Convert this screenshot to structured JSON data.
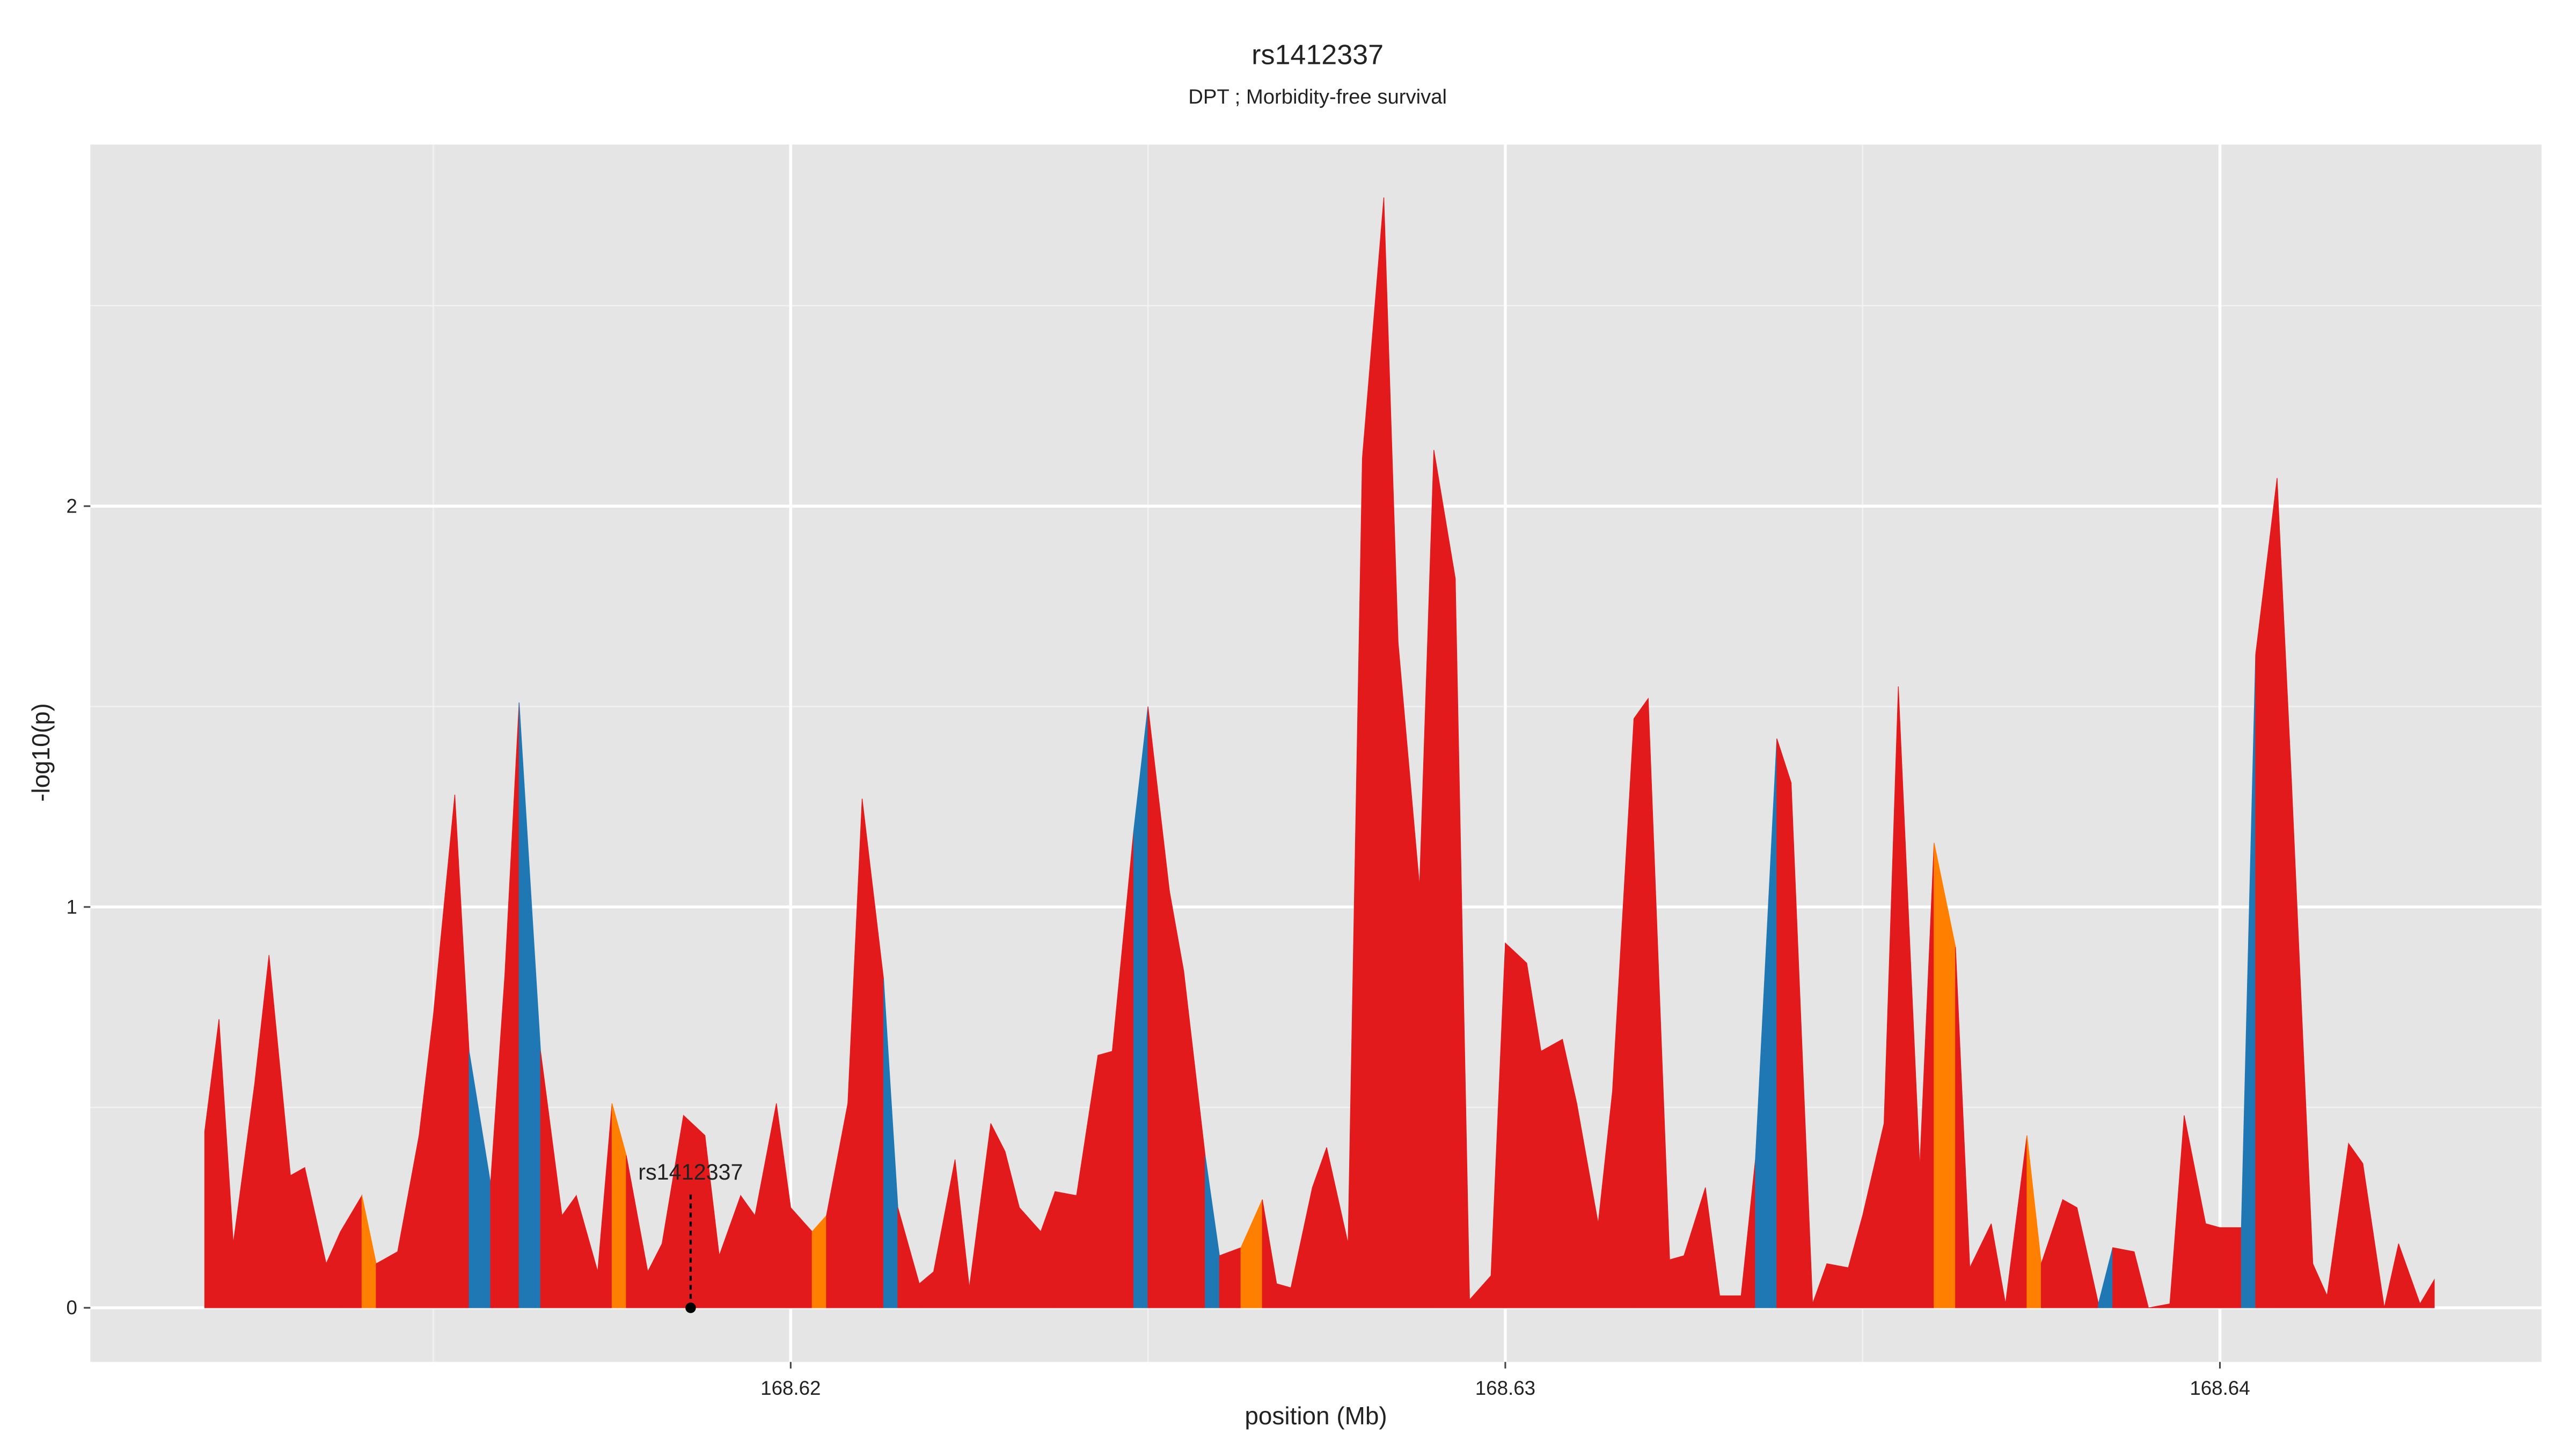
{
  "chart_data": {
    "type": "area",
    "title": "rs1412337",
    "subtitle": "DPT ; Morbidity-free survival",
    "x_label": "position (Mb)",
    "y_label": "-log10(p)",
    "xlim": [
      168.6102,
      168.6445
    ],
    "ylim": [
      -0.135,
      2.902
    ],
    "xticks": [
      168.62,
      168.63,
      168.64
    ],
    "yticks": [
      0,
      1,
      2
    ],
    "xminorticks": [
      168.615,
      168.625,
      168.635
    ],
    "yminorticks": [
      0.5,
      1.5,
      2.5
    ],
    "grid": true,
    "x": [
      168.6118,
      168.612,
      168.6122,
      168.6125,
      168.6127,
      168.613,
      168.6132,
      168.6135,
      168.6137,
      168.614,
      168.6142,
      168.6145,
      168.6148,
      168.615,
      168.6153,
      168.6155,
      168.6158,
      168.616,
      168.6162,
      168.6165,
      168.6168,
      168.617,
      168.6173,
      168.6175,
      168.6177,
      168.618,
      168.6182,
      168.6185,
      168.6188,
      168.619,
      168.6193,
      168.6195,
      168.6198,
      168.62,
      168.6203,
      168.6205,
      168.6208,
      168.621,
      168.6213,
      168.6215,
      168.6218,
      168.622,
      168.6223,
      168.6225,
      168.6228,
      168.623,
      168.6232,
      168.6235,
      168.6237,
      168.624,
      168.6243,
      168.6245,
      168.6248,
      168.625,
      168.6253,
      168.6255,
      168.6258,
      168.626,
      168.6263,
      168.6266,
      168.6268,
      168.627,
      168.6273,
      168.6275,
      168.6278,
      168.628,
      168.6283,
      168.6285,
      168.6288,
      168.629,
      168.6293,
      168.6295,
      168.6298,
      168.63,
      168.6303,
      168.6305,
      168.6308,
      168.631,
      168.6313,
      168.6315,
      168.6318,
      168.632,
      168.6323,
      168.6325,
      168.6328,
      168.633,
      168.6333,
      168.6335,
      168.6338,
      168.634,
      168.6343,
      168.6345,
      168.6348,
      168.635,
      168.6353,
      168.6355,
      168.6358,
      168.636,
      168.6363,
      168.6365,
      168.6368,
      168.637,
      168.6373,
      168.6375,
      168.6378,
      168.638,
      168.6383,
      168.6385,
      168.6388,
      168.639,
      168.6393,
      168.6395,
      168.6398,
      168.64,
      168.6403,
      168.6405,
      168.6408,
      168.641,
      168.6413,
      168.6415,
      168.6418,
      168.642,
      168.6423,
      168.6425,
      168.6428,
      168.643
    ],
    "values": [
      0.44,
      0.72,
      0.16,
      0.56,
      0.88,
      0.33,
      0.35,
      0.11,
      0.19,
      0.28,
      0.11,
      0.14,
      0.43,
      0.73,
      1.28,
      0.64,
      0.31,
      0.83,
      1.51,
      0.64,
      0.23,
      0.28,
      0.09,
      0.51,
      0.38,
      0.09,
      0.16,
      0.48,
      0.43,
      0.13,
      0.28,
      0.23,
      0.51,
      0.25,
      0.19,
      0.23,
      0.51,
      1.27,
      0.82,
      0.25,
      0.06,
      0.09,
      0.37,
      0.05,
      0.46,
      0.39,
      0.25,
      0.19,
      0.29,
      0.28,
      0.63,
      0.64,
      1.19,
      1.5,
      1.04,
      0.84,
      0.38,
      0.13,
      0.15,
      0.27,
      0.06,
      0.05,
      0.3,
      0.4,
      0.16,
      2.12,
      2.77,
      1.66,
      1.05,
      2.14,
      1.82,
      0.02,
      0.08,
      0.91,
      0.86,
      0.64,
      0.67,
      0.51,
      0.21,
      0.54,
      1.47,
      1.52,
      0.12,
      0.13,
      0.3,
      0.03,
      0.03,
      0.37,
      1.42,
      1.31,
      0.01,
      0.11,
      0.1,
      0.23,
      0.46,
      1.55,
      0.35,
      1.16,
      0.9,
      0.1,
      0.21,
      0.01,
      0.43,
      0.11,
      0.27,
      0.25,
      0.01,
      0.15,
      0.14,
      0.0,
      0.01,
      0.48,
      0.21,
      0.2,
      0.2,
      1.63,
      2.07,
      1.32,
      0.11,
      0.03,
      0.41,
      0.36,
      0.0,
      0.16,
      0.01,
      0.07
    ],
    "segment_colors": [
      "#e31a1c",
      "#e31a1c",
      "#e31a1c",
      "#e31a1c",
      "#e31a1c",
      "#e31a1c",
      "#e31a1c",
      "#e31a1c",
      "#e31a1c",
      "#ff7f00",
      "#e31a1c",
      "#e31a1c",
      "#e31a1c",
      "#e31a1c",
      "#e31a1c",
      "#1f78b4",
      "#e31a1c",
      "#e31a1c",
      "#1f78b4",
      "#e31a1c",
      "#e31a1c",
      "#e31a1c",
      "#e31a1c",
      "#ff7f00",
      "#e31a1c",
      "#e31a1c",
      "#e31a1c",
      "#e31a1c",
      "#e31a1c",
      "#e31a1c",
      "#e31a1c",
      "#e31a1c",
      "#e31a1c",
      "#e31a1c",
      "#ff7f00",
      "#e31a1c",
      "#e31a1c",
      "#e31a1c",
      "#1f78b4",
      "#e31a1c",
      "#e31a1c",
      "#e31a1c",
      "#e31a1c",
      "#e31a1c",
      "#e31a1c",
      "#e31a1c",
      "#e31a1c",
      "#e31a1c",
      "#e31a1c",
      "#e31a1c",
      "#e31a1c",
      "#e31a1c",
      "#1f78b4",
      "#e31a1c",
      "#e31a1c",
      "#e31a1c",
      "#1f78b4",
      "#e31a1c",
      "#ff7f00",
      "#e31a1c",
      "#e31a1c",
      "#e31a1c",
      "#e31a1c",
      "#e31a1c",
      "#e31a1c",
      "#e31a1c",
      "#e31a1c",
      "#e31a1c",
      "#e31a1c",
      "#e31a1c",
      "#e31a1c",
      "#e31a1c",
      "#e31a1c",
      "#e31a1c",
      "#e31a1c",
      "#e31a1c",
      "#e31a1c",
      "#e31a1c",
      "#e31a1c",
      "#e31a1c",
      "#e31a1c",
      "#e31a1c",
      "#e31a1c",
      "#e31a1c",
      "#e31a1c",
      "#e31a1c",
      "#e31a1c",
      "#1f78b4",
      "#e31a1c",
      "#e31a1c",
      "#e31a1c",
      "#e31a1c",
      "#e31a1c",
      "#e31a1c",
      "#e31a1c",
      "#e31a1c",
      "#e31a1c",
      "#ff7f00",
      "#e31a1c",
      "#e31a1c",
      "#e31a1c",
      "#e31a1c",
      "#ff7f00",
      "#e31a1c",
      "#e31a1c",
      "#e31a1c",
      "#1f78b4",
      "#e31a1c",
      "#e31a1c",
      "#e31a1c",
      "#e31a1c",
      "#e31a1c",
      "#e31a1c",
      "#e31a1c",
      "#1f78b4",
      "#e31a1c",
      "#e31a1c",
      "#e31a1c",
      "#e31a1c",
      "#e31a1c",
      "#e31a1c",
      "#e31a1c",
      "#e31a1c",
      "#e31a1c",
      "#e31a1c"
    ],
    "annotation": {
      "text": "rs1412337",
      "x": 168.6186,
      "y": 0
    }
  }
}
